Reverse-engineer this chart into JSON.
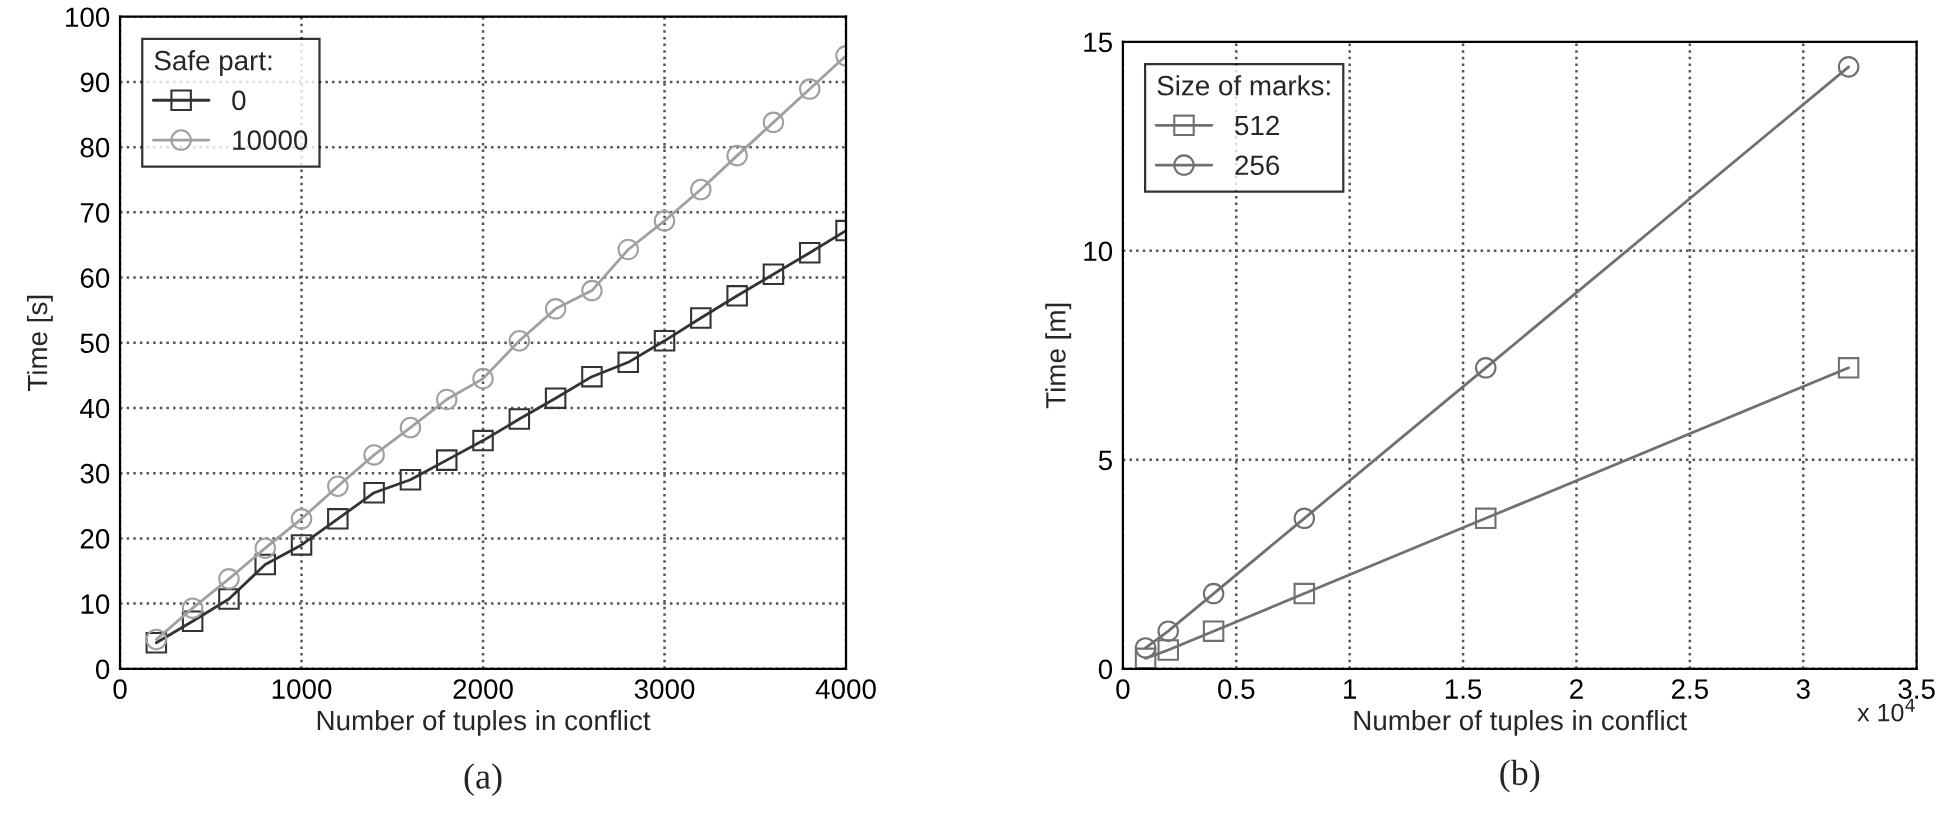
{
  "chart_data": [
    {
      "type": "line",
      "xlabel": "Number of tuples in conflict",
      "ylabel": "Time [s]",
      "legend_title": "Safe part:",
      "legend": "top left",
      "grid": true,
      "line_style": "solid",
      "x": [
        200,
        400,
        600,
        800,
        1000,
        1200,
        1400,
        1600,
        1800,
        2000,
        2200,
        2400,
        2600,
        2800,
        3000,
        3200,
        3400,
        3600,
        3800,
        4000
      ],
      "series": [
        {
          "name": "0",
          "color": "#333333",
          "marker": "square",
          "values": [
            4,
            7.3,
            10.7,
            16,
            19,
            23,
            27,
            29,
            32,
            35,
            38.3,
            41.5,
            44.8,
            47,
            50.3,
            53.8,
            57.2,
            60.5,
            63.8,
            67.2
          ]
        },
        {
          "name": "10000",
          "color": "#a0a0a0",
          "marker": "circle",
          "values": [
            4.5,
            9.3,
            13.8,
            18.5,
            23,
            28,
            32.8,
            37,
            41.3,
            44.5,
            50.3,
            55.2,
            58,
            64.3,
            68.7,
            73.5,
            78.7,
            83.8,
            88.9,
            94
          ]
        }
      ],
      "xlim": [
        0,
        4000
      ],
      "xticks": [
        0,
        1000,
        2000,
        3000,
        4000
      ],
      "ylim": [
        0,
        100
      ],
      "yticks": [
        0,
        10,
        20,
        30,
        40,
        50,
        60,
        70,
        80,
        90,
        100
      ],
      "annotations": [
        "(a)"
      ]
    },
    {
      "type": "line",
      "xlabel": "Number of tuples in conflict",
      "ylabel": "Time [m]",
      "legend_title": "Size of marks:",
      "legend": "top left",
      "grid": true,
      "line_style": "solid",
      "x": [
        0.1,
        0.2,
        0.4,
        0.8,
        1.6,
        3.2
      ],
      "series": [
        {
          "name": "512",
          "color": "#707070",
          "marker": "square",
          "values": [
            0.25,
            0.45,
            0.9,
            1.8,
            3.6,
            7.2
          ]
        },
        {
          "name": "256",
          "color": "#707070",
          "marker": "circle",
          "values": [
            0.5,
            0.9,
            1.8,
            3.6,
            7.2,
            14.4
          ]
        }
      ],
      "xlim": [
        0,
        3.5
      ],
      "xticks": [
        0,
        0.5,
        1,
        1.5,
        2,
        2.5,
        3,
        3.5
      ],
      "ylim": [
        0,
        15
      ],
      "yticks": [
        0,
        5,
        10,
        15
      ],
      "annotations": [
        "(b)",
        "x 10$^{4}$"
      ]
    }
  ]
}
